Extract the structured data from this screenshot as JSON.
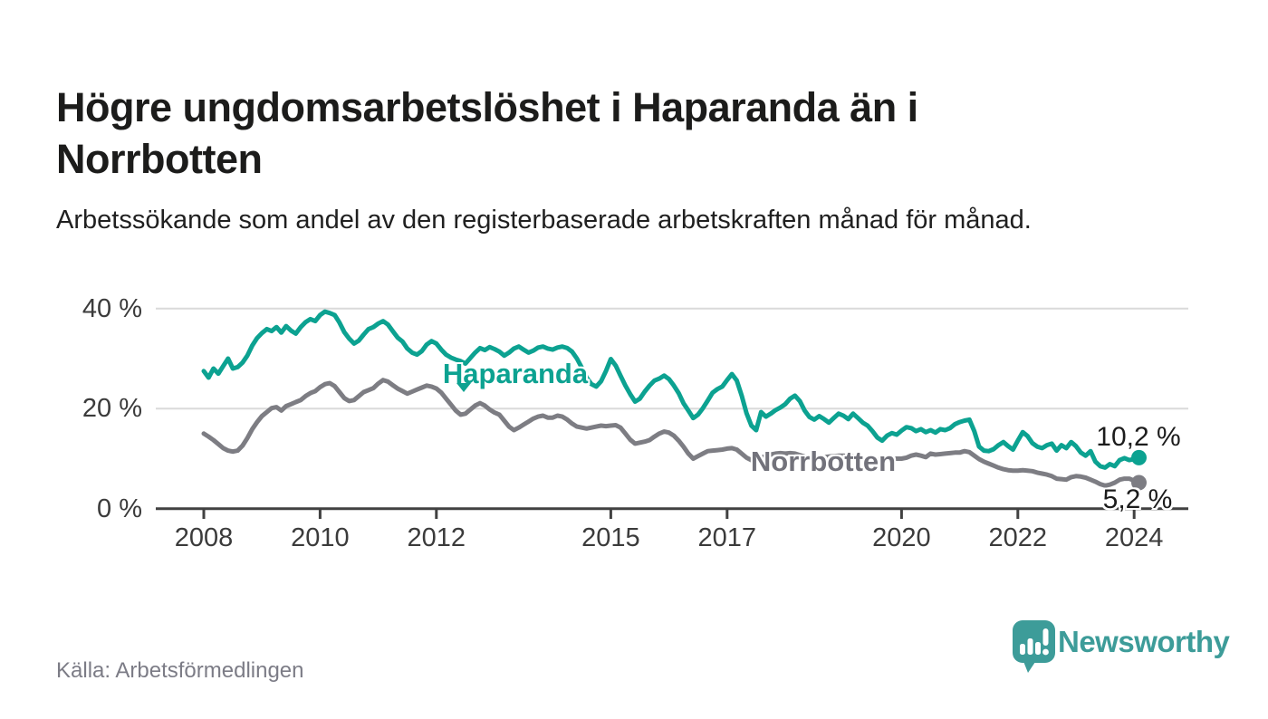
{
  "header": {
    "title": "Högre ungdomsarbetslöshet i Haparanda än i Norrbotten",
    "subtitle": "Arbetssökande som andel av den registerbaserade arbetskraften månad för månad."
  },
  "source": {
    "label": "Källa: Arbetsförmedlingen"
  },
  "branding": {
    "name": "Newsworthy",
    "logo_icon": "speech-bubble-bar-chart",
    "logo_color": "#3d9c99"
  },
  "colors": {
    "haparanda": "#0ca291",
    "norrbotten": "#7d7d83",
    "norrbotten_label": "#72727b",
    "gridline": "#dadada",
    "axis": "#414141",
    "end_label_text": "#1c1c1c"
  },
  "chart_data": {
    "type": "line",
    "frequency": "monthly",
    "x_start": "2008-01",
    "x_end": "2024-02",
    "unit": "%",
    "grid": "horizontal",
    "ylim": [
      0,
      42
    ],
    "y_ticks": [
      {
        "value": 0,
        "label": "0 %"
      },
      {
        "value": 20,
        "label": "20 %"
      },
      {
        "value": 40,
        "label": "40 %"
      }
    ],
    "x_ticks": [
      2008,
      2010,
      2012,
      2015,
      2017,
      2020,
      2022,
      2024
    ],
    "series": [
      {
        "name": "Haparanda",
        "color": "#0ca291",
        "end_value": 10.2,
        "end_label": "10,2 %",
        "values": [
          27.5,
          26.2,
          28.0,
          27.0,
          28.5,
          30.0,
          28.0,
          28.3,
          29.2,
          30.6,
          32.6,
          34.1,
          35.1,
          35.9,
          35.5,
          36.3,
          35.2,
          36.5,
          35.6,
          35.0,
          36.3,
          37.3,
          37.9,
          37.5,
          38.7,
          39.4,
          39.1,
          38.7,
          37.2,
          35.3,
          34.0,
          33.0,
          33.6,
          34.8,
          35.9,
          36.3,
          37.0,
          37.5,
          36.8,
          35.5,
          34.2,
          33.4,
          32.0,
          31.2,
          30.8,
          31.5,
          32.8,
          33.5,
          33.0,
          31.8,
          30.8,
          30.2,
          29.8,
          29.5,
          29.0,
          30.1,
          31.2,
          32.1,
          31.7,
          32.3,
          31.9,
          31.4,
          30.6,
          31.2,
          32.0,
          32.4,
          31.8,
          31.2,
          31.6,
          32.2,
          32.4,
          32.0,
          31.8,
          32.2,
          32.4,
          32.1,
          31.4,
          30.0,
          28.2,
          26.2,
          24.9,
          24.4,
          25.5,
          27.5,
          29.9,
          28.6,
          26.6,
          24.6,
          22.9,
          21.4,
          22.0,
          23.4,
          24.6,
          25.6,
          26.0,
          26.6,
          25.9,
          24.6,
          23.1,
          21.1,
          19.6,
          18.1,
          18.8,
          20.1,
          21.6,
          23.2,
          23.9,
          24.4,
          25.7,
          26.9,
          25.6,
          22.6,
          19.1,
          16.6,
          15.7,
          19.3,
          18.4,
          19.0,
          19.7,
          20.2,
          20.9,
          22.0,
          22.6,
          21.5,
          19.6,
          18.3,
          17.8,
          18.5,
          17.9,
          17.2,
          18.1,
          19.0,
          18.6,
          17.9,
          19.0,
          18.1,
          17.2,
          16.6,
          15.5,
          14.2,
          13.6,
          14.6,
          15.1,
          14.8,
          15.6,
          16.3,
          16.1,
          15.5,
          15.9,
          15.3,
          15.7,
          15.2,
          15.9,
          15.7,
          16.1,
          16.9,
          17.3,
          17.6,
          17.8,
          15.5,
          12.4,
          11.6,
          11.5,
          11.9,
          12.7,
          13.3,
          12.5,
          11.8,
          13.6,
          15.3,
          14.5,
          13.1,
          12.4,
          12.1,
          12.7,
          13.0,
          11.6,
          12.7,
          12.1,
          13.3,
          12.5,
          11.2,
          10.6,
          11.5,
          9.4,
          8.5,
          8.2,
          8.9,
          8.5,
          9.7,
          10.1,
          9.7,
          9.9,
          10.2
        ]
      },
      {
        "name": "Norrbotten",
        "color": "#7d7d83",
        "end_value": 5.2,
        "end_label": "5,2 %",
        "values": [
          15.0,
          14.4,
          13.7,
          12.9,
          12.1,
          11.6,
          11.4,
          11.6,
          12.6,
          14.1,
          15.9,
          17.3,
          18.5,
          19.3,
          20.1,
          20.3,
          19.6,
          20.5,
          20.9,
          21.3,
          21.7,
          22.5,
          23.1,
          23.5,
          24.3,
          24.9,
          25.1,
          24.5,
          23.3,
          22.1,
          21.5,
          21.7,
          22.5,
          23.3,
          23.7,
          24.1,
          25.0,
          25.7,
          25.4,
          24.7,
          24.0,
          23.5,
          23.0,
          23.4,
          23.8,
          24.2,
          24.6,
          24.4,
          24.0,
          23.2,
          22.0,
          20.8,
          19.6,
          18.8,
          19.0,
          19.8,
          20.6,
          21.1,
          20.6,
          19.8,
          19.2,
          18.8,
          17.6,
          16.4,
          15.7,
          16.2,
          16.8,
          17.4,
          18.0,
          18.4,
          18.6,
          18.2,
          18.2,
          18.6,
          18.4,
          17.8,
          17.0,
          16.4,
          16.2,
          16.0,
          16.2,
          16.4,
          16.6,
          16.5,
          16.6,
          16.7,
          16.2,
          15.0,
          13.8,
          13.0,
          13.2,
          13.4,
          13.7,
          14.4,
          15.0,
          15.4,
          15.2,
          14.6,
          13.6,
          12.4,
          11.0,
          10.0,
          10.5,
          11.0,
          11.5,
          11.6,
          11.7,
          11.8,
          12.0,
          12.1,
          11.8,
          11.0,
          10.2,
          9.7,
          9.9,
          10.2,
          10.5,
          10.8,
          11.0,
          11.1,
          11.0,
          11.1,
          11.0,
          10.7,
          10.4,
          10.2,
          10.1,
          10.2,
          10.3,
          10.4,
          10.5,
          10.6,
          10.6,
          10.5,
          10.4,
          10.2,
          10.0,
          9.9,
          9.8,
          9.8,
          9.9,
          10.0,
          10.0,
          10.0,
          10.0,
          10.2,
          10.6,
          10.8,
          10.6,
          10.3,
          11.0,
          10.8,
          10.9,
          11.0,
          11.1,
          11.2,
          11.2,
          11.5,
          11.3,
          10.6,
          9.9,
          9.4,
          9.0,
          8.6,
          8.2,
          7.9,
          7.7,
          7.6,
          7.6,
          7.7,
          7.6,
          7.5,
          7.2,
          7.0,
          6.8,
          6.5,
          6.0,
          5.9,
          5.8,
          6.3,
          6.5,
          6.4,
          6.2,
          5.8,
          5.4,
          4.9,
          4.6,
          4.8,
          5.2,
          5.8,
          6.0,
          6.0,
          5.6,
          5.2
        ]
      }
    ]
  }
}
